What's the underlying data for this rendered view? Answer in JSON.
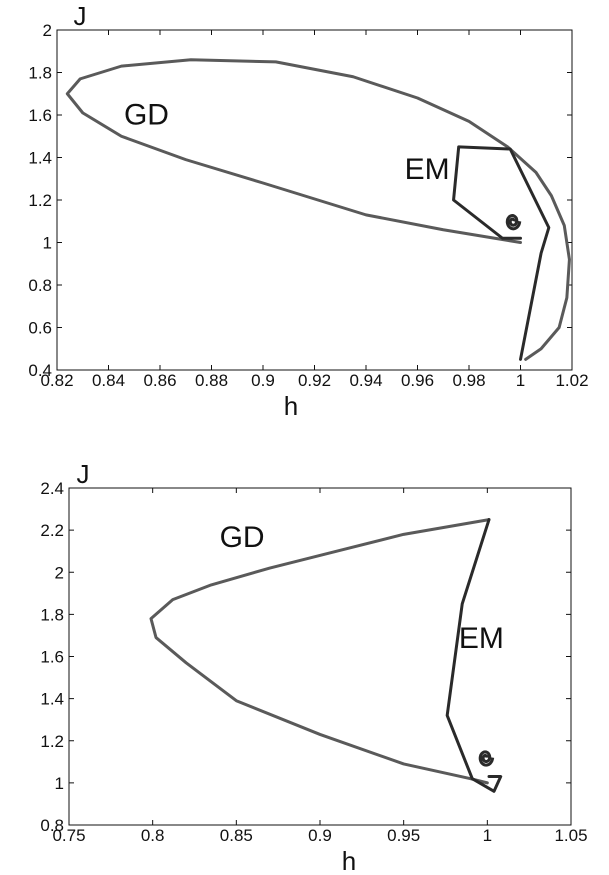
{
  "chart_data": [
    {
      "type": "line",
      "xlabel": "h",
      "ylabel": "J",
      "xlim": [
        0.82,
        1.02
      ],
      "ylim": [
        0.4,
        2.0
      ],
      "xticks": [
        "0.82",
        "0.84",
        "0.86",
        "0.88",
        "0.9",
        "0.92",
        "0.94",
        "0.96",
        "0.98",
        "1",
        "1.02"
      ],
      "yticks": [
        "0.4",
        "0.6",
        "0.8",
        "1",
        "1.2",
        "1.4",
        "1.6",
        "1.8",
        "2"
      ],
      "series": [
        {
          "name": "GD",
          "color": "#5a5a5a",
          "label_at": [
            0.846,
            1.555
          ],
          "points": [
            [
              1.0,
              1.0
            ],
            [
              0.99,
              1.02
            ],
            [
              0.97,
              1.06
            ],
            [
              0.94,
              1.13
            ],
            [
              0.9,
              1.28
            ],
            [
              0.87,
              1.39
            ],
            [
              0.845,
              1.5
            ],
            [
              0.83,
              1.61
            ],
            [
              0.824,
              1.7
            ],
            [
              0.829,
              1.77
            ],
            [
              0.845,
              1.83
            ],
            [
              0.872,
              1.86
            ],
            [
              0.905,
              1.85
            ],
            [
              0.935,
              1.78
            ],
            [
              0.96,
              1.68
            ],
            [
              0.98,
              1.57
            ],
            [
              0.995,
              1.45
            ],
            [
              1.006,
              1.33
            ],
            [
              1.012,
              1.22
            ],
            [
              1.017,
              1.08
            ],
            [
              1.019,
              0.92
            ],
            [
              1.018,
              0.74
            ],
            [
              1.015,
              0.6
            ],
            [
              1.008,
              0.5
            ],
            [
              1.002,
              0.45
            ]
          ]
        },
        {
          "name": "EM",
          "color": "#2a2a2a",
          "label_at": [
            0.955,
            1.3
          ],
          "points": [
            [
              1.0,
              1.02
            ],
            [
              0.993,
              1.02
            ],
            [
              0.974,
              1.2
            ],
            [
              0.976,
              1.45
            ],
            [
              0.996,
              1.44
            ],
            [
              1.011,
              1.07
            ],
            [
              1.008,
              0.95
            ],
            [
              1.0,
              0.45
            ]
          ],
          "spiral_center": [
            0.997,
            1.1
          ]
        }
      ]
    },
    {
      "type": "line",
      "xlabel": "h",
      "ylabel": "J",
      "xlim": [
        0.75,
        1.05
      ],
      "ylim": [
        0.8,
        2.4
      ],
      "xticks": [
        "0.75",
        "0.8",
        "0.85",
        "0.9",
        "0.95",
        "1",
        "1.05"
      ],
      "yticks": [
        "0.8",
        "1",
        "1.2",
        "1.4",
        "1.6",
        "1.8",
        "2",
        "2.2",
        "2.4"
      ],
      "series": [
        {
          "name": "GD",
          "color": "#5a5a5a",
          "label_at": [
            0.84,
            2.12
          ],
          "points": [
            [
              1.0,
              1.0
            ],
            [
              0.99,
              1.02
            ],
            [
              0.95,
              1.09
            ],
            [
              0.9,
              1.23
            ],
            [
              0.85,
              1.39
            ],
            [
              0.82,
              1.57
            ],
            [
              0.802,
              1.69
            ],
            [
              0.799,
              1.78
            ],
            [
              0.812,
              1.87
            ],
            [
              0.835,
              1.94
            ],
            [
              0.87,
              2.02
            ],
            [
              0.91,
              2.1
            ],
            [
              0.95,
              2.18
            ],
            [
              1.001,
              2.25
            ]
          ]
        },
        {
          "name": "EM",
          "color": "#2a2a2a",
          "label_at": [
            0.983,
            1.64
          ],
          "points": [
            [
              1.001,
              2.25
            ],
            [
              0.985,
              1.85
            ],
            [
              0.976,
              1.32
            ],
            [
              0.991,
              1.02
            ],
            [
              1.004,
              0.96
            ],
            [
              1.008,
              1.03
            ],
            [
              1.001,
              1.03
            ]
          ],
          "spiral_center": [
            0.999,
            1.12
          ]
        }
      ]
    }
  ]
}
